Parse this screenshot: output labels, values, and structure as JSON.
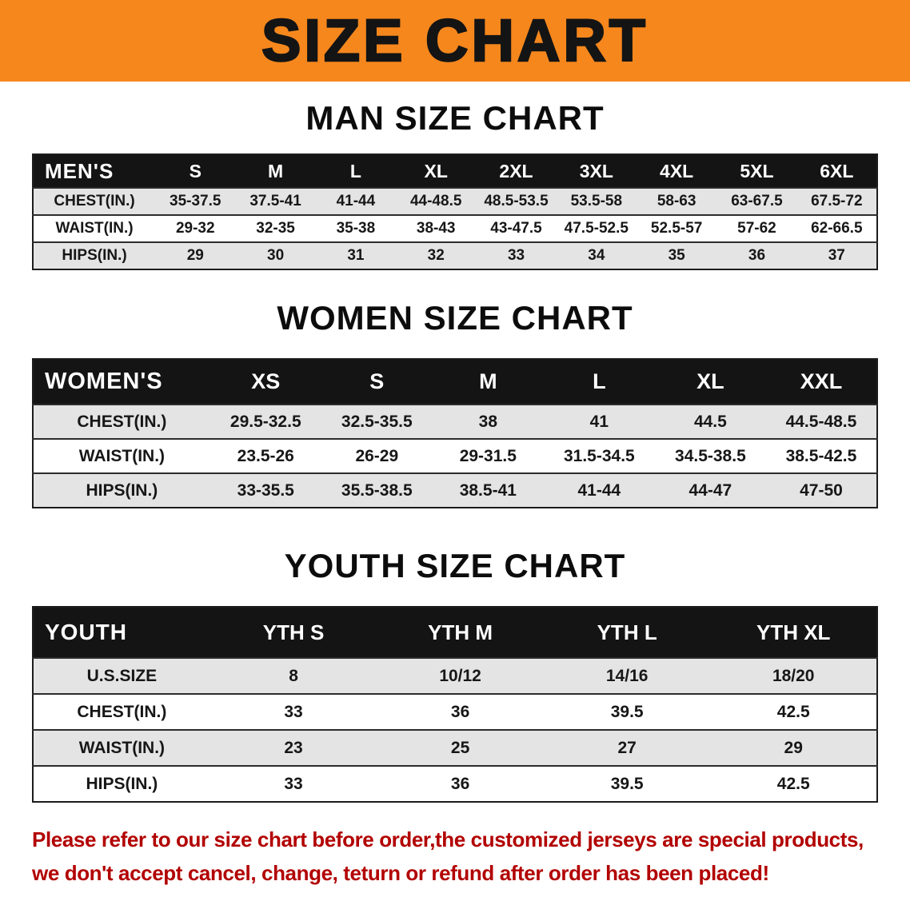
{
  "banner": {
    "title": "SIZE CHART",
    "bg_color": "#F6871D",
    "text_color": "#141414"
  },
  "sections": [
    {
      "heading": "MAN SIZE CHART",
      "table": {
        "header_label": "MEN'S",
        "columns": [
          "S",
          "M",
          "L",
          "XL",
          "2XL",
          "3XL",
          "4XL",
          "5XL",
          "6XL"
        ],
        "rows": [
          {
            "label": "CHEST(IN.)",
            "values": [
              "35-37.5",
              "37.5-41",
              "41-44",
              "44-48.5",
              "48.5-53.5",
              "53.5-58",
              "58-63",
              "63-67.5",
              "67.5-72"
            ]
          },
          {
            "label": "WAIST(IN.)",
            "values": [
              "29-32",
              "32-35",
              "35-38",
              "38-43",
              "43-47.5",
              "47.5-52.5",
              "52.5-57",
              "57-62",
              "62-66.5"
            ]
          },
          {
            "label": "HIPS(IN.)",
            "values": [
              "29",
              "30",
              "31",
              "32",
              "33",
              "34",
              "35",
              "36",
              "37"
            ]
          }
        ]
      }
    },
    {
      "heading": "WOMEN SIZE CHART",
      "table": {
        "header_label": "WOMEN'S",
        "columns": [
          "XS",
          "S",
          "M",
          "L",
          "XL",
          "XXL"
        ],
        "rows": [
          {
            "label": "CHEST(IN.)",
            "values": [
              "29.5-32.5",
              "32.5-35.5",
              "38",
              "41",
              "44.5",
              "44.5-48.5"
            ]
          },
          {
            "label": "WAIST(IN.)",
            "values": [
              "23.5-26",
              "26-29",
              "29-31.5",
              "31.5-34.5",
              "34.5-38.5",
              "38.5-42.5"
            ]
          },
          {
            "label": "HIPS(IN.)",
            "values": [
              "33-35.5",
              "35.5-38.5",
              "38.5-41",
              "41-44",
              "44-47",
              "47-50"
            ]
          }
        ]
      }
    },
    {
      "heading": "YOUTH SIZE CHART",
      "table": {
        "header_label": "YOUTH",
        "columns": [
          "YTH S",
          "YTH M",
          "YTH L",
          "YTH XL"
        ],
        "rows": [
          {
            "label": "U.S.SIZE",
            "values": [
              "8",
              "10/12",
              "14/16",
              "18/20"
            ]
          },
          {
            "label": "CHEST(IN.)",
            "values": [
              "33",
              "36",
              "39.5",
              "42.5"
            ]
          },
          {
            "label": "WAIST(IN.)",
            "values": [
              "23",
              "25",
              "27",
              "29"
            ]
          },
          {
            "label": "HIPS(IN.)",
            "values": [
              "33",
              "36",
              "39.5",
              "42.5"
            ]
          }
        ]
      }
    }
  ],
  "disclaimer": {
    "line1": "Please refer to our size chart before order,the customized jerseys are special products,",
    "line2": "we don't accept cancel, change, teturn or refund after order has been placed!",
    "text_color": "#b20000"
  }
}
